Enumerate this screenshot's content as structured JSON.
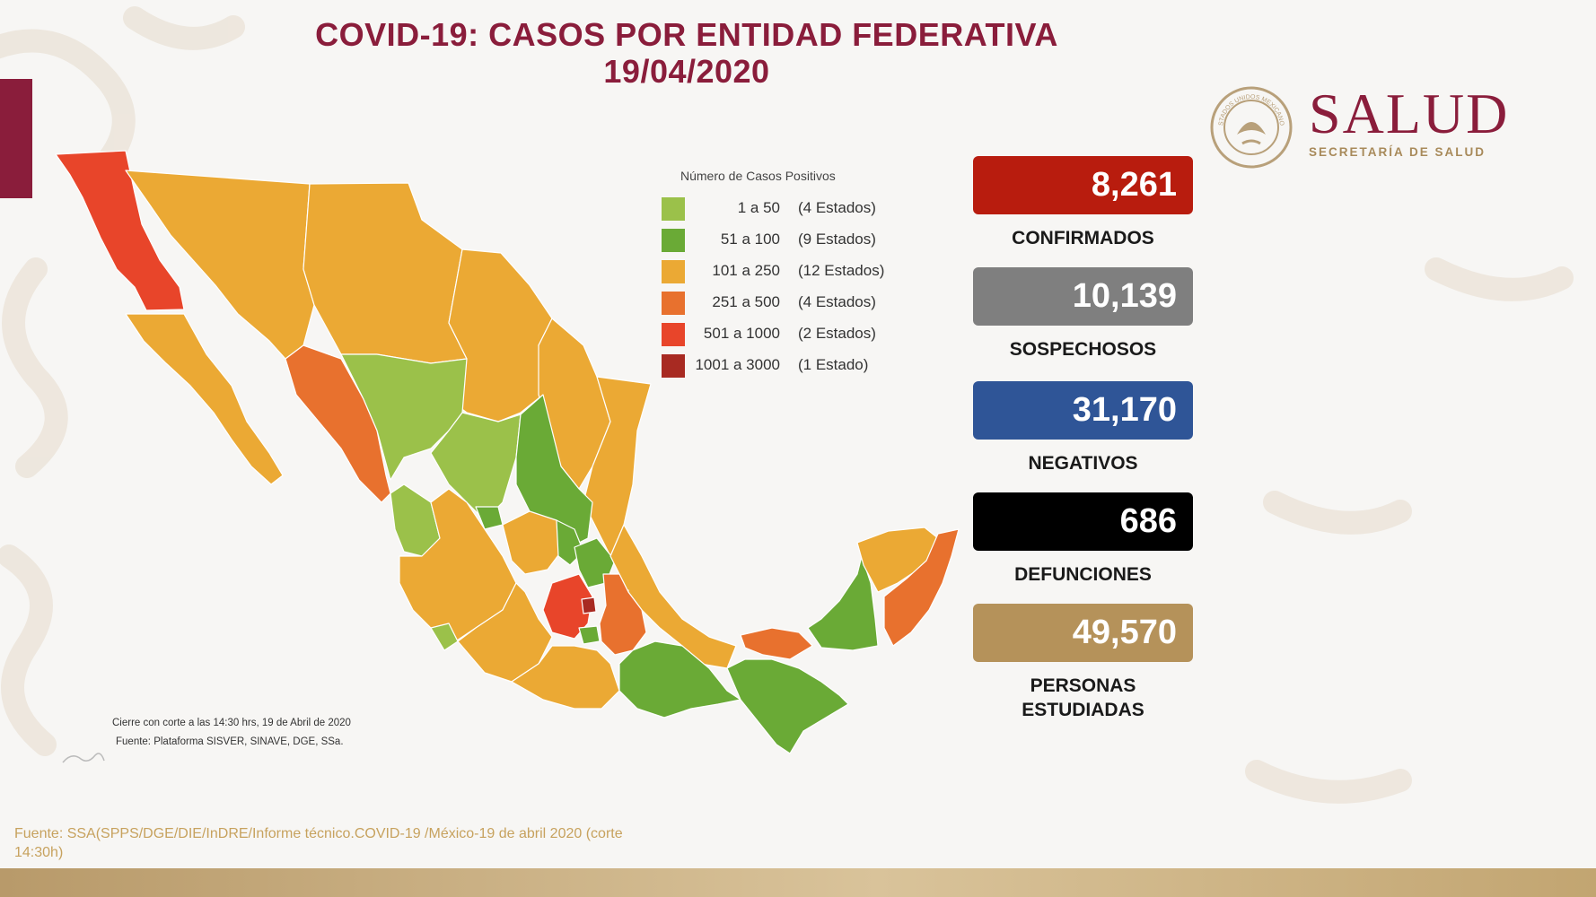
{
  "header": {
    "title_line1": "COVID-19: CASOS POR ENTIDAD FEDERATIVA",
    "title_line2": "19/04/2020"
  },
  "logo": {
    "word": "SALUD",
    "subtitle": "SECRETARÍA DE SALUD",
    "seal_text": "ESTADOS UNIDOS MEXICANOS"
  },
  "legend": {
    "title": "Número de Casos Positivos",
    "items": [
      {
        "range": "1 a 50",
        "count": "(4 Estados)",
        "color": "#9bc14a"
      },
      {
        "range": "51 a 100",
        "count": "(9 Estados)",
        "color": "#6aaa36"
      },
      {
        "range": "101 a 250",
        "count": "(12 Estados)",
        "color": "#eba934"
      },
      {
        "range": "251 a 500",
        "count": "(4 Estados)",
        "color": "#e8712e"
      },
      {
        "range": "501 a 1000",
        "count": "(2 Estados)",
        "color": "#e8452a"
      },
      {
        "range": "1001 a 3000",
        "count": "(1 Estado)",
        "color": "#a82a22"
      }
    ]
  },
  "stats": [
    {
      "value": "8,261",
      "label": "CONFIRMADOS",
      "color": "#b81c0e"
    },
    {
      "value": "10,139",
      "label": "SOSPECHOSOS",
      "color": "#7f7f7f"
    },
    {
      "value": "31,170",
      "label": "NEGATIVOS",
      "color": "#2f5597"
    },
    {
      "value": "686",
      "label": "DEFUNCIONES",
      "color": "#000000"
    },
    {
      "value": "49,570",
      "label_line1": "PERSONAS",
      "label_line2": "ESTUDIADAS",
      "color": "#b5925a"
    }
  ],
  "notes": {
    "cut": "Cierre con corte a las 14:30 hrs, 19 de Abril de 2020",
    "platform": "Fuente: Plataforma SISVER, SINAVE, DGE, SSa."
  },
  "source": "Fuente: SSA(SPPS/DGE/DIE/InDRE/Informe técnico.COVID-19 /México-19 de abril 2020 (corte 14:30h)"
}
